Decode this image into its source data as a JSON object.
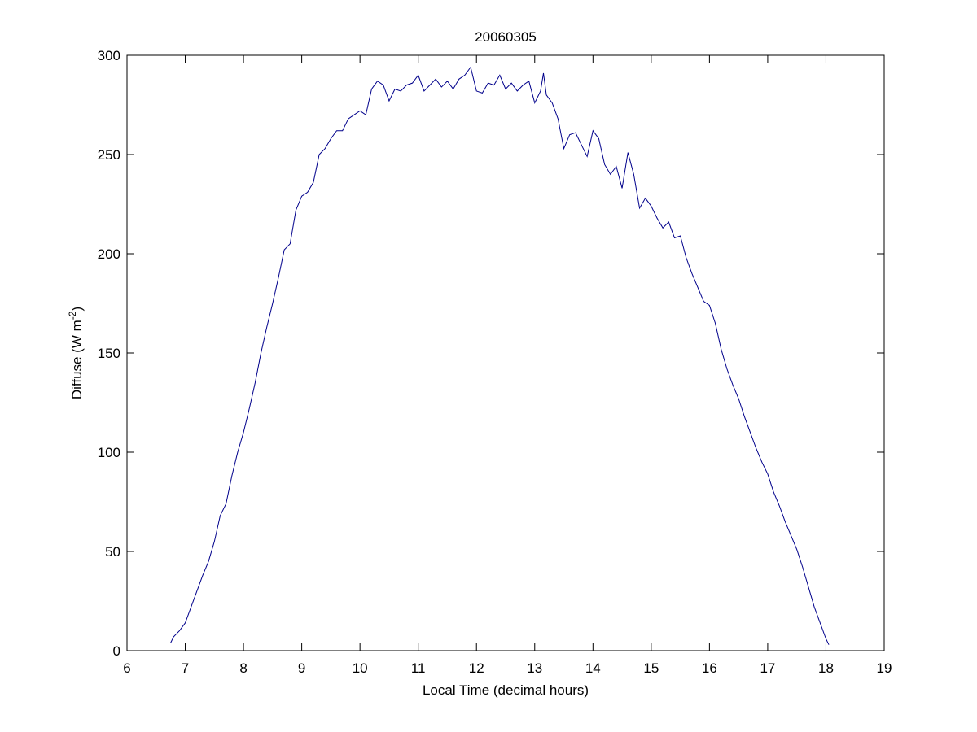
{
  "chart_data": {
    "type": "line",
    "title": "20060305",
    "xlabel": "Local Time (decimal hours)",
    "ylabel": {
      "text": "Diffuse (W m",
      "superscript": "-2",
      "suffix": ")"
    },
    "xlim": [
      6,
      19
    ],
    "xticks": [
      6,
      7,
      8,
      9,
      10,
      11,
      12,
      13,
      14,
      15,
      16,
      17,
      18,
      19
    ],
    "ylim": [
      0,
      300
    ],
    "yticks": [
      0,
      50,
      100,
      150,
      200,
      250,
      300
    ],
    "grid": false,
    "series": [
      {
        "color": "#00008b",
        "x": [
          6.75,
          6.8,
          6.9,
          7.0,
          7.1,
          7.2,
          7.3,
          7.4,
          7.5,
          7.6,
          7.7,
          7.8,
          7.9,
          8.0,
          8.1,
          8.2,
          8.3,
          8.4,
          8.5,
          8.6,
          8.7,
          8.8,
          8.9,
          9.0,
          9.1,
          9.2,
          9.3,
          9.4,
          9.5,
          9.6,
          9.7,
          9.8,
          9.9,
          10.0,
          10.1,
          10.2,
          10.3,
          10.4,
          10.5,
          10.6,
          10.7,
          10.8,
          10.9,
          11.0,
          11.1,
          11.2,
          11.3,
          11.4,
          11.5,
          11.6,
          11.7,
          11.8,
          11.9,
          12.0,
          12.1,
          12.2,
          12.3,
          12.4,
          12.5,
          12.6,
          12.7,
          12.8,
          12.9,
          13.0,
          13.1,
          13.15,
          13.2,
          13.3,
          13.4,
          13.5,
          13.6,
          13.7,
          13.8,
          13.9,
          14.0,
          14.1,
          14.2,
          14.3,
          14.4,
          14.5,
          14.6,
          14.7,
          14.8,
          14.9,
          15.0,
          15.1,
          15.2,
          15.3,
          15.4,
          15.5,
          15.6,
          15.7,
          15.8,
          15.9,
          16.0,
          16.1,
          16.2,
          16.3,
          16.4,
          16.5,
          16.6,
          16.7,
          16.8,
          16.9,
          17.0,
          17.1,
          17.2,
          17.3,
          17.4,
          17.5,
          17.6,
          17.7,
          17.8,
          17.9,
          18.0,
          18.05
        ],
        "values": [
          4,
          7,
          10,
          14,
          22,
          30,
          38,
          45,
          55,
          68,
          74,
          88,
          100,
          110,
          122,
          135,
          150,
          163,
          175,
          188,
          202,
          205,
          222,
          229,
          231,
          236,
          250,
          253,
          258,
          262,
          262,
          268,
          270,
          272,
          270,
          283,
          287,
          285,
          277,
          283,
          282,
          285,
          286,
          290,
          282,
          285,
          288,
          284,
          287,
          283,
          288,
          290,
          294,
          282,
          281,
          286,
          285,
          290,
          283,
          286,
          282,
          285,
          287,
          276,
          282,
          291,
          280,
          276,
          268,
          253,
          260,
          261,
          255,
          249,
          262,
          258,
          245,
          240,
          244,
          233,
          251,
          240,
          223,
          228,
          224,
          218,
          213,
          216,
          208,
          209,
          198,
          190,
          183,
          176,
          174,
          165,
          152,
          142,
          134,
          127,
          118,
          110,
          102,
          95,
          89,
          80,
          73,
          65,
          58,
          51,
          42,
          32,
          22,
          14,
          6,
          3
        ]
      }
    ]
  }
}
